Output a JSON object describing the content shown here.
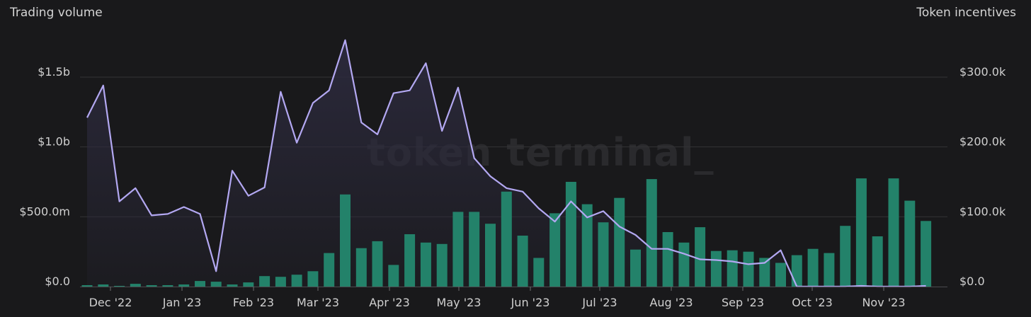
{
  "chart_data": {
    "type": "bar",
    "title": "",
    "ylabel_left": "Trading volume",
    "ylabel_right": "Token incentives",
    "watermark": "token terminal_",
    "x_ticks": [
      "Dec '22",
      "Jan '23",
      "Feb '23",
      "Mar '23",
      "Apr '23",
      "May '23",
      "Jun '23",
      "Jul '23",
      "Aug '23",
      "Sep '23",
      "Oct '23",
      "Nov '23"
    ],
    "y_left_ticks": [
      "$0.0",
      "$500.0m",
      "$1.0b",
      "$1.5b"
    ],
    "y_right_ticks": [
      "$0.0",
      "$100.0k",
      "$200.0k",
      "$300.0k"
    ],
    "ylim_left": [
      0,
      1500
    ],
    "ylim_right": [
      0,
      300
    ],
    "colors": {
      "bars": "#23826a",
      "line": "#b3a8f2",
      "area": "#2c2a3d",
      "grid": "#333336"
    },
    "series": [
      {
        "kind": "line-area",
        "axis": "left",
        "unit": "USD millions",
        "values": [
          1210,
          1440,
          610,
          705,
          510,
          520,
          570,
          520,
          110,
          830,
          650,
          710,
          1395,
          1030,
          1315,
          1405,
          1765,
          1175,
          1090,
          1385,
          1405,
          1600,
          1115,
          1425,
          920,
          790,
          705,
          680,
          560,
          465,
          610,
          495,
          540,
          430,
          370,
          270,
          270,
          235,
          195,
          190,
          180,
          160,
          170,
          260,
          0,
          0,
          0,
          0,
          5,
          0,
          0,
          0,
          5
        ]
      },
      {
        "kind": "bar",
        "axis": "right",
        "unit": "USD thousands",
        "values": [
          2,
          3,
          1,
          4,
          2,
          2,
          3,
          8,
          7,
          3,
          6,
          15,
          14,
          17,
          22,
          48,
          132,
          55,
          65,
          31,
          75,
          63,
          61,
          107,
          107,
          90,
          136,
          73,
          41,
          105,
          150,
          118,
          92,
          127,
          53,
          154,
          78,
          63,
          85,
          51,
          52,
          50,
          41,
          34,
          45,
          54,
          48,
          87,
          155,
          72,
          155,
          123,
          94
        ]
      }
    ]
  }
}
